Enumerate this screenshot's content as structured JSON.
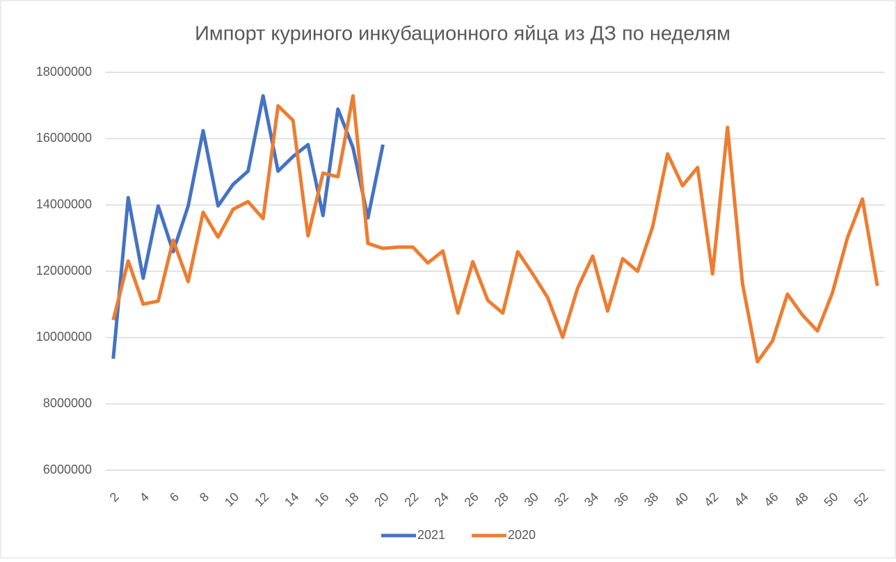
{
  "chart_data": {
    "type": "line",
    "title": "Импорт куриного инкубационного яйца из ДЗ по неделям",
    "categories": [
      "2",
      null,
      "4",
      null,
      "6",
      null,
      "8",
      null,
      "10",
      null,
      "12",
      null,
      "14",
      null,
      "16",
      null,
      "18",
      null,
      "20",
      null,
      "22",
      null,
      "24",
      null,
      "26",
      null,
      "28",
      null,
      "30",
      null,
      "32",
      null,
      "34",
      null,
      "36",
      null,
      "38",
      null,
      "40",
      null,
      "42",
      null,
      "44",
      null,
      "46",
      null,
      "48",
      null,
      "50",
      null,
      "52",
      null
    ],
    "series": [
      {
        "name": "2021",
        "color": "#4472c4",
        "values": [
          9360000,
          14220000,
          11790000,
          13970000,
          12590000,
          13970000,
          16240000,
          13970000,
          14620000,
          15020000,
          17290000,
          15020000,
          15460000,
          15820000,
          13680000,
          16890000,
          15730000,
          13610000,
          15820000,
          null,
          null,
          null,
          null,
          null,
          null,
          null,
          null,
          null,
          null,
          null,
          null,
          null,
          null,
          null,
          null,
          null,
          null,
          null,
          null,
          null,
          null,
          null,
          null,
          null,
          null,
          null,
          null,
          null,
          null,
          null,
          null,
          null
        ]
      },
      {
        "name": "2020",
        "color": "#ed7d31",
        "values": [
          10530000,
          12310000,
          11010000,
          11100000,
          12940000,
          11690000,
          13780000,
          13030000,
          13870000,
          14100000,
          13590000,
          16990000,
          16550000,
          13070000,
          14960000,
          14850000,
          17290000,
          12840000,
          12690000,
          12730000,
          12730000,
          12250000,
          12610000,
          10740000,
          12290000,
          11120000,
          10740000,
          12590000,
          11920000,
          11200000,
          10010000,
          11500000,
          12460000,
          10800000,
          12380000,
          12000000,
          13340000,
          15540000,
          14580000,
          15130000,
          11920000,
          16340000,
          11620000,
          9270000,
          9900000,
          11310000,
          10680000,
          10200000,
          11350000,
          13010000,
          14180000,
          11560000
        ]
      }
    ],
    "ylim": [
      6000000,
      18000000
    ],
    "yticks": [
      6000000,
      8000000,
      10000000,
      12000000,
      14000000,
      16000000,
      18000000
    ],
    "grid": true,
    "legend": "bottom"
  }
}
